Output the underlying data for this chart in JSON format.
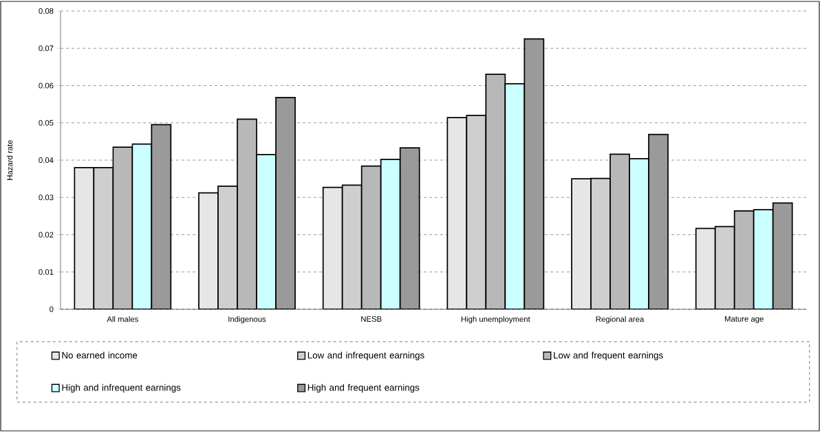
{
  "chart_data": {
    "type": "bar",
    "ylabel": "Hazard rate",
    "categories": [
      "All males",
      "Indigenous",
      "NESB",
      "High unemployment",
      "Regional area",
      "Mature age"
    ],
    "series": [
      {
        "name": "No earned income",
        "color": "#e6e6e6",
        "values": [
          0.038,
          0.0312,
          0.0327,
          0.0514,
          0.035,
          0.0217
        ]
      },
      {
        "name": "Low and infrequent earnings",
        "color": "#cfcfcf",
        "values": [
          0.038,
          0.033,
          0.0333,
          0.052,
          0.0351,
          0.0222
        ]
      },
      {
        "name": "Low and frequent earnings",
        "color": "#b8b8b8",
        "values": [
          0.0435,
          0.051,
          0.0384,
          0.063,
          0.0416,
          0.0264
        ]
      },
      {
        "name": "High and infrequent earnings",
        "color": "#ccffff",
        "values": [
          0.0443,
          0.0415,
          0.0402,
          0.0605,
          0.0404,
          0.0267
        ]
      },
      {
        "name": "High and frequent earnings",
        "color": "#9a9a9a",
        "values": [
          0.0495,
          0.0568,
          0.0433,
          0.0725,
          0.0469,
          0.0285
        ]
      }
    ],
    "ylim": [
      0,
      0.08
    ],
    "yticks": [
      0,
      0.01,
      0.02,
      0.03,
      0.04,
      0.05,
      0.06,
      0.07,
      0.08
    ],
    "grid": "y",
    "legend": "bottom"
  }
}
